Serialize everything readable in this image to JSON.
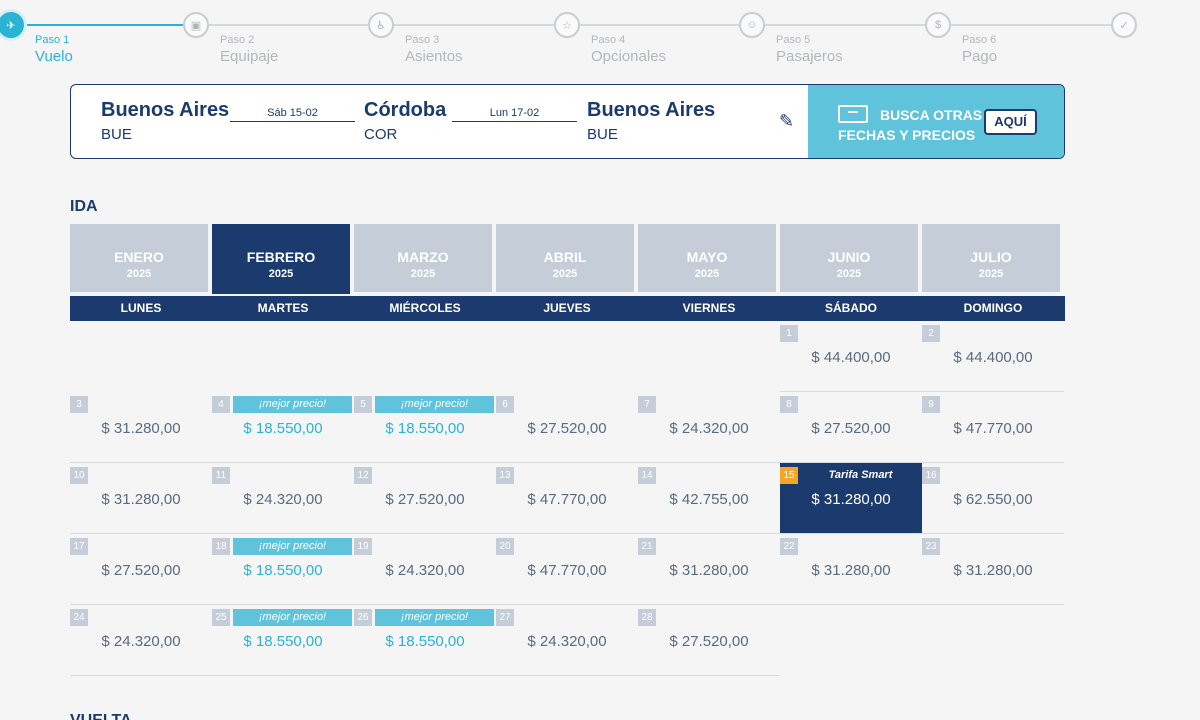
{
  "stepper": {
    "steps": [
      {
        "num": "Paso 1",
        "name": "Vuelo",
        "icon": "plane-icon",
        "glyph": "✈"
      },
      {
        "num": "Paso 2",
        "name": "Equipaje",
        "icon": "luggage-icon",
        "glyph": "▣"
      },
      {
        "num": "Paso 3",
        "name": "Asientos",
        "icon": "seat-icon",
        "glyph": "♿"
      },
      {
        "num": "Paso 4",
        "name": "Opcionales",
        "icon": "star-icon",
        "glyph": "☆"
      },
      {
        "num": "Paso 5",
        "name": "Pasajeros",
        "icon": "user-icon",
        "glyph": "☺"
      },
      {
        "num": "Paso 6",
        "name": "Pago",
        "icon": "dollar-icon",
        "glyph": "$"
      },
      {
        "num": "",
        "name": "",
        "icon": "check-icon",
        "glyph": "✓"
      }
    ]
  },
  "search": {
    "origin": {
      "name": "Buenos Aires",
      "code": "BUE"
    },
    "date_out": "Sáb 15-02",
    "destination": {
      "name": "Córdoba",
      "code": "COR"
    },
    "date_back": "Lun 17-02",
    "return_city": {
      "name": "Buenos Aires",
      "code": "BUE"
    },
    "edit_glyph": "✎",
    "promo_line1": "BUSCA OTRAS",
    "promo_line2": "FECHAS Y PRECIOS",
    "promo_button": "AQUÍ"
  },
  "ida": {
    "title": "IDA",
    "months": [
      {
        "name": "ENERO",
        "year": "2025"
      },
      {
        "name": "FEBRERO",
        "year": "2025"
      },
      {
        "name": "MARZO",
        "year": "2025"
      },
      {
        "name": "ABRIL",
        "year": "2025"
      },
      {
        "name": "MAYO",
        "year": "2025"
      },
      {
        "name": "JUNIO",
        "year": "2025"
      },
      {
        "name": "JULIO",
        "year": "2025"
      }
    ],
    "weekdays": [
      "LUNES",
      "MARTES",
      "MIÉRCOLES",
      "JUEVES",
      "VIERNES",
      "SÁBADO",
      "DOMINGO"
    ],
    "weeks": [
      [
        null,
        null,
        null,
        null,
        null,
        {
          "day": "1",
          "price": "$ 44.400,00"
        },
        {
          "day": "2",
          "price": "$ 44.400,00"
        }
      ],
      [
        {
          "day": "3",
          "price": "$ 31.280,00"
        },
        {
          "day": "4",
          "price": "$ 18.550,00",
          "badge": "¡mejor precio!"
        },
        {
          "day": "5",
          "price": "$ 18.550,00",
          "badge": "¡mejor precio!"
        },
        {
          "day": "6",
          "price": "$ 27.520,00"
        },
        {
          "day": "7",
          "price": "$ 24.320,00"
        },
        {
          "day": "8",
          "price": "$ 27.520,00"
        },
        {
          "day": "9",
          "price": "$ 47.770,00"
        }
      ],
      [
        {
          "day": "10",
          "price": "$ 31.280,00"
        },
        {
          "day": "11",
          "price": "$ 24.320,00"
        },
        {
          "day": "12",
          "price": "$ 27.520,00"
        },
        {
          "day": "13",
          "price": "$ 47.770,00"
        },
        {
          "day": "14",
          "price": "$ 42.755,00"
        },
        {
          "day": "15",
          "price": "$ 31.280,00",
          "badge": "Tarifa Smart",
          "selected": true
        },
        {
          "day": "16",
          "price": "$ 62.550,00"
        }
      ],
      [
        {
          "day": "17",
          "price": "$ 27.520,00"
        },
        {
          "day": "18",
          "price": "$ 18.550,00",
          "badge": "¡mejor precio!"
        },
        {
          "day": "19",
          "price": "$ 24.320,00"
        },
        {
          "day": "20",
          "price": "$ 47.770,00"
        },
        {
          "day": "21",
          "price": "$ 31.280,00"
        },
        {
          "day": "22",
          "price": "$ 31.280,00"
        },
        {
          "day": "23",
          "price": "$ 31.280,00"
        }
      ],
      [
        {
          "day": "24",
          "price": "$ 24.320,00"
        },
        {
          "day": "25",
          "price": "$ 18.550,00",
          "badge": "¡mejor precio!"
        },
        {
          "day": "26",
          "price": "$ 18.550,00",
          "badge": "¡mejor precio!"
        },
        {
          "day": "27",
          "price": "$ 24.320,00"
        },
        {
          "day": "28",
          "price": "$ 27.520,00"
        },
        null,
        null
      ]
    ]
  },
  "vuelta": {
    "title": "VUELTA"
  }
}
